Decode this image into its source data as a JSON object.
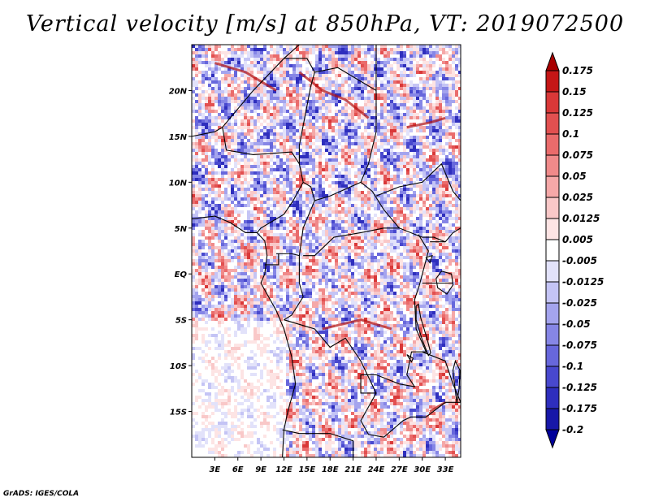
{
  "chart_data": {
    "type": "heatmap",
    "title": "Vertical velocity [m/s] at 850hPa, VT: 2019072500",
    "variable": "Vertical velocity",
    "units": "m/s",
    "level": "850hPa",
    "valid_time": "2019072500",
    "x_ticks": [
      "3E",
      "6E",
      "9E",
      "12E",
      "15E",
      "18E",
      "21E",
      "24E",
      "27E",
      "30E",
      "33E"
    ],
    "x_tick_values": [
      3,
      6,
      9,
      12,
      15,
      18,
      21,
      24,
      27,
      30,
      33
    ],
    "y_ticks": [
      "20N",
      "15N",
      "10N",
      "5N",
      "EQ",
      "5S",
      "10S",
      "15S"
    ],
    "y_tick_values": [
      20,
      15,
      10,
      5,
      0,
      -5,
      -10,
      -15
    ],
    "xlim": [
      0,
      35
    ],
    "ylim": [
      -20,
      25
    ],
    "colorbar": {
      "labels": [
        "0.175",
        "0.15",
        "0.125",
        "0.1",
        "0.075",
        "0.05",
        "0.025",
        "0.0125",
        "0.005",
        "-0.005",
        "-0.0125",
        "-0.025",
        "-0.05",
        "-0.075",
        "-0.1",
        "-0.125",
        "-0.175",
        "-0.2"
      ],
      "colors": [
        "#a80000",
        "#c51616",
        "#d93838",
        "#e25050",
        "#ea6b6b",
        "#f08a8a",
        "#f5a8a8",
        "#f9c8c8",
        "#fde4e4",
        "#ffffff",
        "#e2e2fa",
        "#c4c4f5",
        "#a4a4ee",
        "#8686e6",
        "#6767dc",
        "#4848ce",
        "#2e2ebd",
        "#1717a8",
        "#00009a"
      ]
    },
    "features": [
      "coastlines",
      "country borders",
      "lakes"
    ]
  },
  "footer": {
    "credit": "GrADS: IGES/COLA"
  }
}
